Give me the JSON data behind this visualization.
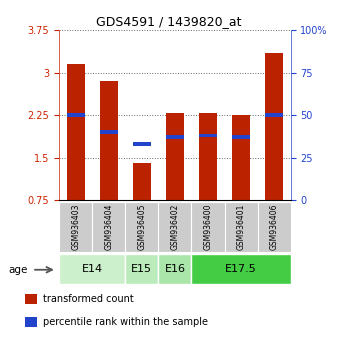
{
  "title": "GDS4591 / 1439820_at",
  "samples": [
    "GSM936403",
    "GSM936404",
    "GSM936405",
    "GSM936402",
    "GSM936400",
    "GSM936401",
    "GSM936406"
  ],
  "transformed_counts": [
    3.15,
    2.85,
    1.41,
    2.29,
    2.29,
    2.25,
    3.35
  ],
  "percentile_ranks": [
    50,
    40,
    33,
    37,
    38,
    37,
    50
  ],
  "age_groups": [
    {
      "label": "E14",
      "indices": [
        0,
        1
      ],
      "color": "#ccf0cc"
    },
    {
      "label": "E15",
      "indices": [
        2
      ],
      "color": "#bbebbb"
    },
    {
      "label": "E16",
      "indices": [
        3
      ],
      "color": "#aae5aa"
    },
    {
      "label": "E17.5",
      "indices": [
        4,
        5,
        6
      ],
      "color": "#44cc44"
    }
  ],
  "ylim": [
    0.75,
    3.75
  ],
  "yticks_left": [
    0.75,
    1.5,
    2.25,
    3.0,
    3.75
  ],
  "ytick_labels_left": [
    "0.75",
    "1.5",
    "2.25",
    "3",
    "3.75"
  ],
  "yticks_right": [
    0,
    25,
    50,
    75,
    100
  ],
  "ytick_labels_right": [
    "0",
    "25",
    "50",
    "75",
    "100%"
  ],
  "bar_color": "#bb2200",
  "percentile_color": "#2244cc",
  "bar_width": 0.55,
  "left_axis_color": "#cc2200",
  "right_axis_color": "#2244cc",
  "sample_bg_color": "#cccccc",
  "age_label": "age",
  "legend_items": [
    {
      "label": "transformed count",
      "color": "#bb2200"
    },
    {
      "label": "percentile rank within the sample",
      "color": "#2244cc"
    }
  ]
}
